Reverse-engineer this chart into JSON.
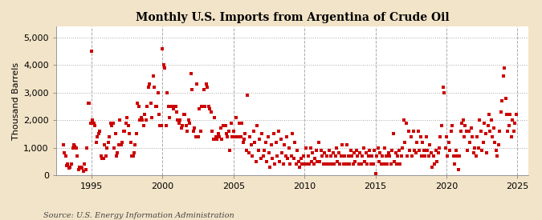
{
  "title": "Monthly U.S. Imports from Argentina of Crude Oil",
  "ylabel": "Thousand Barrels",
  "source": "Source: U.S. Energy Information Administration",
  "background_color": "#f2e4c8",
  "plot_background_color": "#ffffff",
  "marker_color": "#cc0000",
  "xlim": [
    1992.5,
    2025.8
  ],
  "ylim": [
    0,
    5400
  ],
  "yticks": [
    0,
    1000,
    2000,
    3000,
    4000,
    5000
  ],
  "xticks": [
    1995,
    2000,
    2005,
    2010,
    2015,
    2020,
    2025
  ],
  "data": [
    [
      1993.0,
      1100
    ],
    [
      1993.08,
      800
    ],
    [
      1993.17,
      700
    ],
    [
      1993.25,
      350
    ],
    [
      1993.33,
      400
    ],
    [
      1993.42,
      250
    ],
    [
      1993.5,
      300
    ],
    [
      1993.58,
      400
    ],
    [
      1993.67,
      1000
    ],
    [
      1993.75,
      1100
    ],
    [
      1993.83,
      1050
    ],
    [
      1993.92,
      1000
    ],
    [
      1994.0,
      700
    ],
    [
      1994.08,
      200
    ],
    [
      1994.17,
      300
    ],
    [
      1994.25,
      300
    ],
    [
      1994.33,
      250
    ],
    [
      1994.42,
      150
    ],
    [
      1994.5,
      400
    ],
    [
      1994.58,
      200
    ],
    [
      1994.67,
      1000
    ],
    [
      1994.75,
      2600
    ],
    [
      1994.83,
      2600
    ],
    [
      1994.92,
      1900
    ],
    [
      1995.0,
      4500
    ],
    [
      1995.08,
      2000
    ],
    [
      1995.17,
      1900
    ],
    [
      1995.25,
      1800
    ],
    [
      1995.33,
      1200
    ],
    [
      1995.42,
      1400
    ],
    [
      1995.5,
      1500
    ],
    [
      1995.58,
      1600
    ],
    [
      1995.67,
      700
    ],
    [
      1995.75,
      600
    ],
    [
      1995.83,
      600
    ],
    [
      1995.92,
      1100
    ],
    [
      1996.0,
      700
    ],
    [
      1996.08,
      1000
    ],
    [
      1996.17,
      1200
    ],
    [
      1996.25,
      1400
    ],
    [
      1996.33,
      1900
    ],
    [
      1996.42,
      1800
    ],
    [
      1996.5,
      1900
    ],
    [
      1996.58,
      1000
    ],
    [
      1996.67,
      1500
    ],
    [
      1996.75,
      700
    ],
    [
      1996.83,
      800
    ],
    [
      1996.92,
      1100
    ],
    [
      1997.0,
      2000
    ],
    [
      1997.08,
      1100
    ],
    [
      1997.17,
      1200
    ],
    [
      1997.25,
      1600
    ],
    [
      1997.33,
      1600
    ],
    [
      1997.42,
      1900
    ],
    [
      1997.5,
      2100
    ],
    [
      1997.58,
      1800
    ],
    [
      1997.67,
      1500
    ],
    [
      1997.75,
      1200
    ],
    [
      1997.83,
      700
    ],
    [
      1997.92,
      700
    ],
    [
      1998.0,
      800
    ],
    [
      1998.08,
      1100
    ],
    [
      1998.17,
      1500
    ],
    [
      1998.25,
      2600
    ],
    [
      1998.33,
      2500
    ],
    [
      1998.42,
      2000
    ],
    [
      1998.5,
      2100
    ],
    [
      1998.58,
      2000
    ],
    [
      1998.67,
      1800
    ],
    [
      1998.75,
      2200
    ],
    [
      1998.83,
      2000
    ],
    [
      1998.92,
      2500
    ],
    [
      1999.0,
      3200
    ],
    [
      1999.08,
      3300
    ],
    [
      1999.17,
      2600
    ],
    [
      1999.25,
      2100
    ],
    [
      1999.33,
      3600
    ],
    [
      1999.42,
      3200
    ],
    [
      1999.5,
      2500
    ],
    [
      1999.58,
      2500
    ],
    [
      1999.67,
      3000
    ],
    [
      1999.75,
      2200
    ],
    [
      1999.83,
      1800
    ],
    [
      1999.92,
      1800
    ],
    [
      2000.0,
      4600
    ],
    [
      2000.08,
      4000
    ],
    [
      2000.17,
      3900
    ],
    [
      2000.25,
      1800
    ],
    [
      2000.33,
      3000
    ],
    [
      2000.42,
      2500
    ],
    [
      2000.5,
      2100
    ],
    [
      2000.58,
      2500
    ],
    [
      2000.67,
      2500
    ],
    [
      2000.75,
      2400
    ],
    [
      2000.83,
      2500
    ],
    [
      2000.92,
      2500
    ],
    [
      2001.0,
      2300
    ],
    [
      2001.08,
      2000
    ],
    [
      2001.17,
      1900
    ],
    [
      2001.25,
      2000
    ],
    [
      2001.33,
      1700
    ],
    [
      2001.42,
      1800
    ],
    [
      2001.5,
      2200
    ],
    [
      2001.58,
      2200
    ],
    [
      2001.67,
      1800
    ],
    [
      2001.75,
      1600
    ],
    [
      2001.83,
      2000
    ],
    [
      2001.92,
      1900
    ],
    [
      2002.0,
      3700
    ],
    [
      2002.08,
      3100
    ],
    [
      2002.17,
      1600
    ],
    [
      2002.25,
      1700
    ],
    [
      2002.33,
      1400
    ],
    [
      2002.42,
      3300
    ],
    [
      2002.5,
      1400
    ],
    [
      2002.58,
      2400
    ],
    [
      2002.67,
      1600
    ],
    [
      2002.75,
      2500
    ],
    [
      2002.83,
      2500
    ],
    [
      2002.92,
      3100
    ],
    [
      2003.0,
      2500
    ],
    [
      2003.08,
      3300
    ],
    [
      2003.17,
      3200
    ],
    [
      2003.25,
      2500
    ],
    [
      2003.33,
      2400
    ],
    [
      2003.42,
      2300
    ],
    [
      2003.5,
      1600
    ],
    [
      2003.58,
      1300
    ],
    [
      2003.67,
      2100
    ],
    [
      2003.75,
      1400
    ],
    [
      2003.83,
      1300
    ],
    [
      2003.92,
      1500
    ],
    [
      2004.0,
      1400
    ],
    [
      2004.08,
      1700
    ],
    [
      2004.17,
      1300
    ],
    [
      2004.25,
      1800
    ],
    [
      2004.33,
      1800
    ],
    [
      2004.42,
      1800
    ],
    [
      2004.5,
      1500
    ],
    [
      2004.58,
      1400
    ],
    [
      2004.67,
      1600
    ],
    [
      2004.75,
      900
    ],
    [
      2004.83,
      1900
    ],
    [
      2004.92,
      1400
    ],
    [
      2005.0,
      1600
    ],
    [
      2005.08,
      1400
    ],
    [
      2005.17,
      2100
    ],
    [
      2005.25,
      1400
    ],
    [
      2005.33,
      1400
    ],
    [
      2005.42,
      1900
    ],
    [
      2005.5,
      1400
    ],
    [
      2005.58,
      1900
    ],
    [
      2005.67,
      1200
    ],
    [
      2005.75,
      1300
    ],
    [
      2005.83,
      1500
    ],
    [
      2005.92,
      900
    ],
    [
      2006.0,
      2900
    ],
    [
      2006.08,
      800
    ],
    [
      2006.17,
      1400
    ],
    [
      2006.25,
      1100
    ],
    [
      2006.33,
      700
    ],
    [
      2006.42,
      1600
    ],
    [
      2006.5,
      1200
    ],
    [
      2006.58,
      500
    ],
    [
      2006.67,
      1800
    ],
    [
      2006.75,
      900
    ],
    [
      2006.83,
      1300
    ],
    [
      2006.92,
      600
    ],
    [
      2007.0,
      1500
    ],
    [
      2007.08,
      700
    ],
    [
      2007.17,
      900
    ],
    [
      2007.25,
      1200
    ],
    [
      2007.33,
      500
    ],
    [
      2007.42,
      1400
    ],
    [
      2007.5,
      800
    ],
    [
      2007.58,
      300
    ],
    [
      2007.67,
      1100
    ],
    [
      2007.75,
      600
    ],
    [
      2007.83,
      1500
    ],
    [
      2007.92,
      400
    ],
    [
      2008.0,
      1200
    ],
    [
      2008.08,
      700
    ],
    [
      2008.17,
      1600
    ],
    [
      2008.25,
      500
    ],
    [
      2008.33,
      1300
    ],
    [
      2008.42,
      800
    ],
    [
      2008.5,
      400
    ],
    [
      2008.58,
      1100
    ],
    [
      2008.67,
      700
    ],
    [
      2008.75,
      1400
    ],
    [
      2008.83,
      600
    ],
    [
      2008.92,
      1000
    ],
    [
      2009.0,
      400
    ],
    [
      2009.08,
      700
    ],
    [
      2009.17,
      1500
    ],
    [
      2009.25,
      600
    ],
    [
      2009.33,
      1200
    ],
    [
      2009.42,
      400
    ],
    [
      2009.5,
      900
    ],
    [
      2009.58,
      500
    ],
    [
      2009.67,
      300
    ],
    [
      2009.75,
      600
    ],
    [
      2009.83,
      400
    ],
    [
      2009.92,
      700
    ],
    [
      2010.0,
      400
    ],
    [
      2010.08,
      1000
    ],
    [
      2010.17,
      400
    ],
    [
      2010.25,
      700
    ],
    [
      2010.33,
      400
    ],
    [
      2010.42,
      1000
    ],
    [
      2010.5,
      500
    ],
    [
      2010.58,
      800
    ],
    [
      2010.67,
      400
    ],
    [
      2010.75,
      600
    ],
    [
      2010.83,
      900
    ],
    [
      2010.92,
      500
    ],
    [
      2011.0,
      1200
    ],
    [
      2011.08,
      500
    ],
    [
      2011.17,
      900
    ],
    [
      2011.25,
      700
    ],
    [
      2011.33,
      400
    ],
    [
      2011.42,
      800
    ],
    [
      2011.5,
      400
    ],
    [
      2011.58,
      700
    ],
    [
      2011.67,
      400
    ],
    [
      2011.75,
      900
    ],
    [
      2011.83,
      700
    ],
    [
      2011.92,
      400
    ],
    [
      2012.0,
      800
    ],
    [
      2012.08,
      400
    ],
    [
      2012.17,
      700
    ],
    [
      2012.25,
      1000
    ],
    [
      2012.33,
      500
    ],
    [
      2012.42,
      800
    ],
    [
      2012.5,
      400
    ],
    [
      2012.58,
      700
    ],
    [
      2012.67,
      1100
    ],
    [
      2012.75,
      400
    ],
    [
      2012.83,
      700
    ],
    [
      2012.92,
      400
    ],
    [
      2013.0,
      1100
    ],
    [
      2013.08,
      700
    ],
    [
      2013.17,
      400
    ],
    [
      2013.25,
      900
    ],
    [
      2013.33,
      700
    ],
    [
      2013.42,
      400
    ],
    [
      2013.5,
      800
    ],
    [
      2013.58,
      500
    ],
    [
      2013.67,
      900
    ],
    [
      2013.75,
      700
    ],
    [
      2013.83,
      400
    ],
    [
      2013.92,
      800
    ],
    [
      2014.0,
      400
    ],
    [
      2014.08,
      700
    ],
    [
      2014.17,
      1000
    ],
    [
      2014.25,
      500
    ],
    [
      2014.33,
      800
    ],
    [
      2014.42,
      400
    ],
    [
      2014.5,
      700
    ],
    [
      2014.58,
      900
    ],
    [
      2014.67,
      400
    ],
    [
      2014.75,
      700
    ],
    [
      2014.83,
      400
    ],
    [
      2014.92,
      900
    ],
    [
      2015.0,
      50
    ],
    [
      2015.08,
      700
    ],
    [
      2015.17,
      1000
    ],
    [
      2015.25,
      500
    ],
    [
      2015.33,
      800
    ],
    [
      2015.42,
      400
    ],
    [
      2015.5,
      700
    ],
    [
      2015.58,
      400
    ],
    [
      2015.67,
      1000
    ],
    [
      2015.75,
      700
    ],
    [
      2015.83,
      400
    ],
    [
      2015.92,
      800
    ],
    [
      2016.0,
      700
    ],
    [
      2016.08,
      400
    ],
    [
      2016.17,
      900
    ],
    [
      2016.25,
      1500
    ],
    [
      2016.33,
      500
    ],
    [
      2016.42,
      800
    ],
    [
      2016.5,
      400
    ],
    [
      2016.58,
      700
    ],
    [
      2016.67,
      900
    ],
    [
      2016.75,
      400
    ],
    [
      2016.83,
      700
    ],
    [
      2016.92,
      1000
    ],
    [
      2017.0,
      2000
    ],
    [
      2017.08,
      1200
    ],
    [
      2017.17,
      1900
    ],
    [
      2017.25,
      700
    ],
    [
      2017.33,
      1600
    ],
    [
      2017.42,
      900
    ],
    [
      2017.5,
      1400
    ],
    [
      2017.58,
      700
    ],
    [
      2017.67,
      1600
    ],
    [
      2017.75,
      900
    ],
    [
      2017.83,
      800
    ],
    [
      2017.92,
      1200
    ],
    [
      2018.0,
      1600
    ],
    [
      2018.08,
      900
    ],
    [
      2018.17,
      1400
    ],
    [
      2018.25,
      700
    ],
    [
      2018.33,
      1200
    ],
    [
      2018.42,
      900
    ],
    [
      2018.5,
      700
    ],
    [
      2018.58,
      1400
    ],
    [
      2018.67,
      900
    ],
    [
      2018.75,
      700
    ],
    [
      2018.83,
      1100
    ],
    [
      2018.92,
      800
    ],
    [
      2019.0,
      300
    ],
    [
      2019.08,
      700
    ],
    [
      2019.17,
      400
    ],
    [
      2019.25,
      900
    ],
    [
      2019.33,
      500
    ],
    [
      2019.42,
      800
    ],
    [
      2019.5,
      1000
    ],
    [
      2019.58,
      1400
    ],
    [
      2019.67,
      1800
    ],
    [
      2019.75,
      3200
    ],
    [
      2019.83,
      3000
    ],
    [
      2019.92,
      1000
    ],
    [
      2020.0,
      1400
    ],
    [
      2020.08,
      700
    ],
    [
      2020.17,
      1200
    ],
    [
      2020.25,
      900
    ],
    [
      2020.33,
      1600
    ],
    [
      2020.42,
      1800
    ],
    [
      2020.5,
      700
    ],
    [
      2020.58,
      400
    ],
    [
      2020.67,
      900
    ],
    [
      2020.75,
      700
    ],
    [
      2020.83,
      200
    ],
    [
      2020.92,
      700
    ],
    [
      2021.0,
      1600
    ],
    [
      2021.08,
      1900
    ],
    [
      2021.17,
      2000
    ],
    [
      2021.25,
      1400
    ],
    [
      2021.33,
      1800
    ],
    [
      2021.42,
      1600
    ],
    [
      2021.5,
      900
    ],
    [
      2021.58,
      1600
    ],
    [
      2021.67,
      1200
    ],
    [
      2021.75,
      1700
    ],
    [
      2021.83,
      1400
    ],
    [
      2021.92,
      800
    ],
    [
      2022.0,
      1000
    ],
    [
      2022.08,
      700
    ],
    [
      2022.17,
      1400
    ],
    [
      2022.25,
      1000
    ],
    [
      2022.33,
      2000
    ],
    [
      2022.42,
      1600
    ],
    [
      2022.5,
      900
    ],
    [
      2022.58,
      1200
    ],
    [
      2022.67,
      1900
    ],
    [
      2022.75,
      1500
    ],
    [
      2022.83,
      800
    ],
    [
      2022.92,
      1800
    ],
    [
      2023.0,
      2200
    ],
    [
      2023.08,
      1600
    ],
    [
      2023.17,
      2000
    ],
    [
      2023.25,
      1400
    ],
    [
      2023.33,
      1700
    ],
    [
      2023.42,
      1200
    ],
    [
      2023.5,
      900
    ],
    [
      2023.58,
      700
    ],
    [
      2023.67,
      1100
    ],
    [
      2023.75,
      1600
    ],
    [
      2023.83,
      2300
    ],
    [
      2023.92,
      2700
    ],
    [
      2024.0,
      3600
    ],
    [
      2024.08,
      3900
    ],
    [
      2024.17,
      2800
    ],
    [
      2024.25,
      2200
    ],
    [
      2024.33,
      1600
    ],
    [
      2024.42,
      1800
    ],
    [
      2024.5,
      2200
    ],
    [
      2024.58,
      1400
    ],
    [
      2024.67,
      2000
    ],
    [
      2024.75,
      1600
    ],
    [
      2024.83,
      1900
    ],
    [
      2024.92,
      2200
    ]
  ]
}
